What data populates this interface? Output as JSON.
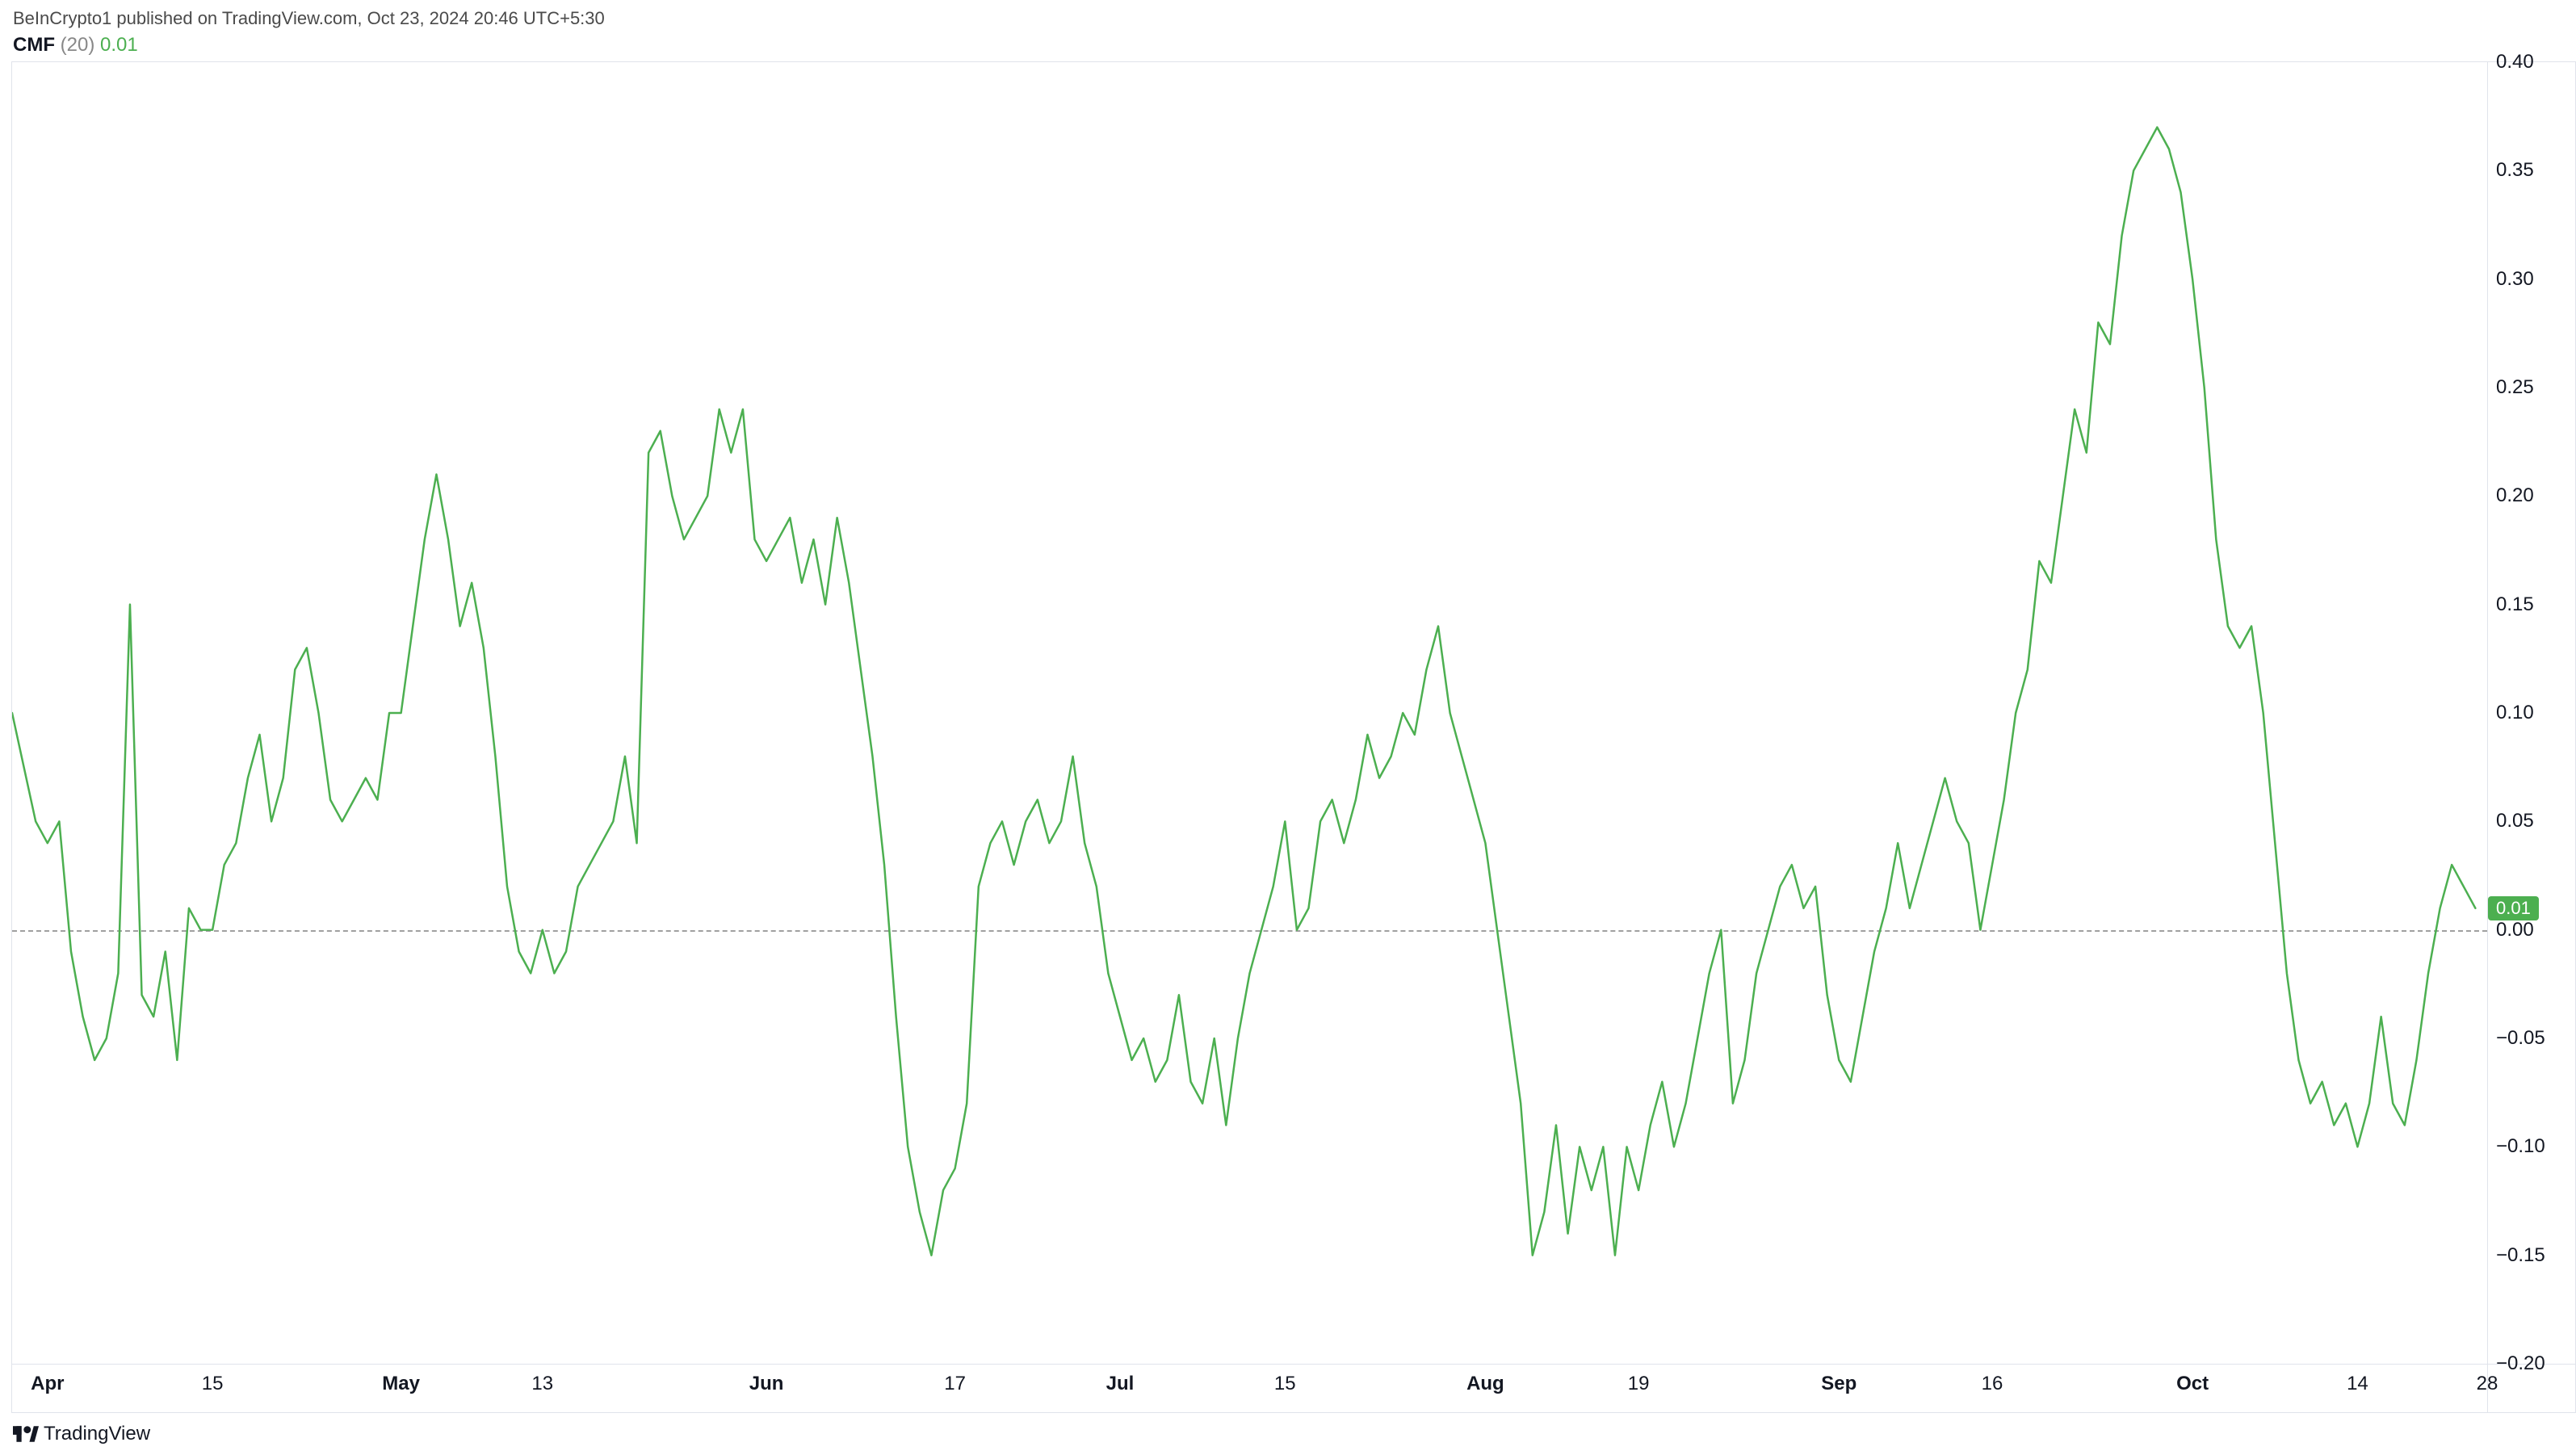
{
  "attribution": "BeInCrypto1 published on TradingView.com, Oct 23, 2024 20:46 UTC+5:30",
  "indicator": {
    "name": "CMF",
    "period": "(20)",
    "value": "0.01",
    "value_color": "#4caf50"
  },
  "footer_brand": "TradingView",
  "chart": {
    "type": "line",
    "line_color": "#4caf50",
    "line_width": 2.5,
    "background_color": "#ffffff",
    "border_color": "#e0e3eb",
    "zero_line_color": "#a0a0a0",
    "y": {
      "min": -0.2,
      "max": 0.4,
      "step": 0.05,
      "ticks": [
        {
          "v": 0.4,
          "label": "0.40"
        },
        {
          "v": 0.35,
          "label": "0.35"
        },
        {
          "v": 0.3,
          "label": "0.30"
        },
        {
          "v": 0.25,
          "label": "0.25"
        },
        {
          "v": 0.2,
          "label": "0.20"
        },
        {
          "v": 0.15,
          "label": "0.15"
        },
        {
          "v": 0.1,
          "label": "0.10"
        },
        {
          "v": 0.05,
          "label": "0.05"
        },
        {
          "v": 0.0,
          "label": "0.00"
        },
        {
          "v": -0.05,
          "label": "−0.05"
        },
        {
          "v": -0.1,
          "label": "−0.10"
        },
        {
          "v": -0.15,
          "label": "−0.15"
        },
        {
          "v": -0.2,
          "label": "−0.20"
        }
      ],
      "last_badge": {
        "v": 0.01,
        "label": "0.01",
        "bg": "#4caf50"
      }
    },
    "x": {
      "min": 0,
      "max": 210,
      "ticks": [
        {
          "v": 3,
          "label": "Apr",
          "bold": true
        },
        {
          "v": 17,
          "label": "15"
        },
        {
          "v": 33,
          "label": "May",
          "bold": true
        },
        {
          "v": 45,
          "label": "13"
        },
        {
          "v": 64,
          "label": "Jun",
          "bold": true
        },
        {
          "v": 80,
          "label": "17"
        },
        {
          "v": 94,
          "label": "Jul",
          "bold": true
        },
        {
          "v": 108,
          "label": "15"
        },
        {
          "v": 125,
          "label": "Aug",
          "bold": true
        },
        {
          "v": 138,
          "label": "19"
        },
        {
          "v": 155,
          "label": "Sep",
          "bold": true
        },
        {
          "v": 168,
          "label": "16"
        },
        {
          "v": 185,
          "label": "Oct",
          "bold": true
        },
        {
          "v": 199,
          "label": "14"
        },
        {
          "v": 210,
          "label": "28"
        }
      ]
    },
    "series": [
      {
        "x": 0,
        "y": 0.1
      },
      {
        "x": 2,
        "y": 0.05
      },
      {
        "x": 3,
        "y": 0.04
      },
      {
        "x": 4,
        "y": 0.05
      },
      {
        "x": 5,
        "y": -0.01
      },
      {
        "x": 6,
        "y": -0.04
      },
      {
        "x": 7,
        "y": -0.06
      },
      {
        "x": 8,
        "y": -0.05
      },
      {
        "x": 9,
        "y": -0.02
      },
      {
        "x": 10,
        "y": 0.15
      },
      {
        "x": 11,
        "y": -0.03
      },
      {
        "x": 12,
        "y": -0.04
      },
      {
        "x": 13,
        "y": -0.01
      },
      {
        "x": 14,
        "y": -0.06
      },
      {
        "x": 15,
        "y": 0.01
      },
      {
        "x": 16,
        "y": 0.0
      },
      {
        "x": 17,
        "y": 0.0
      },
      {
        "x": 18,
        "y": 0.03
      },
      {
        "x": 19,
        "y": 0.04
      },
      {
        "x": 20,
        "y": 0.07
      },
      {
        "x": 21,
        "y": 0.09
      },
      {
        "x": 22,
        "y": 0.05
      },
      {
        "x": 23,
        "y": 0.07
      },
      {
        "x": 24,
        "y": 0.12
      },
      {
        "x": 25,
        "y": 0.13
      },
      {
        "x": 26,
        "y": 0.1
      },
      {
        "x": 27,
        "y": 0.06
      },
      {
        "x": 28,
        "y": 0.05
      },
      {
        "x": 29,
        "y": 0.06
      },
      {
        "x": 30,
        "y": 0.07
      },
      {
        "x": 31,
        "y": 0.06
      },
      {
        "x": 32,
        "y": 0.1
      },
      {
        "x": 33,
        "y": 0.1
      },
      {
        "x": 34,
        "y": 0.14
      },
      {
        "x": 35,
        "y": 0.18
      },
      {
        "x": 36,
        "y": 0.21
      },
      {
        "x": 37,
        "y": 0.18
      },
      {
        "x": 38,
        "y": 0.14
      },
      {
        "x": 39,
        "y": 0.16
      },
      {
        "x": 40,
        "y": 0.13
      },
      {
        "x": 41,
        "y": 0.08
      },
      {
        "x": 42,
        "y": 0.02
      },
      {
        "x": 43,
        "y": -0.01
      },
      {
        "x": 44,
        "y": -0.02
      },
      {
        "x": 45,
        "y": 0.0
      },
      {
        "x": 46,
        "y": -0.02
      },
      {
        "x": 47,
        "y": -0.01
      },
      {
        "x": 48,
        "y": 0.02
      },
      {
        "x": 49,
        "y": 0.03
      },
      {
        "x": 50,
        "y": 0.04
      },
      {
        "x": 51,
        "y": 0.05
      },
      {
        "x": 52,
        "y": 0.08
      },
      {
        "x": 53,
        "y": 0.04
      },
      {
        "x": 54,
        "y": 0.22
      },
      {
        "x": 55,
        "y": 0.23
      },
      {
        "x": 56,
        "y": 0.2
      },
      {
        "x": 57,
        "y": 0.18
      },
      {
        "x": 58,
        "y": 0.19
      },
      {
        "x": 59,
        "y": 0.2
      },
      {
        "x": 60,
        "y": 0.24
      },
      {
        "x": 61,
        "y": 0.22
      },
      {
        "x": 62,
        "y": 0.24
      },
      {
        "x": 63,
        "y": 0.18
      },
      {
        "x": 64,
        "y": 0.17
      },
      {
        "x": 65,
        "y": 0.18
      },
      {
        "x": 66,
        "y": 0.19
      },
      {
        "x": 67,
        "y": 0.16
      },
      {
        "x": 68,
        "y": 0.18
      },
      {
        "x": 69,
        "y": 0.15
      },
      {
        "x": 70,
        "y": 0.19
      },
      {
        "x": 71,
        "y": 0.16
      },
      {
        "x": 72,
        "y": 0.12
      },
      {
        "x": 73,
        "y": 0.08
      },
      {
        "x": 74,
        "y": 0.03
      },
      {
        "x": 75,
        "y": -0.04
      },
      {
        "x": 76,
        "y": -0.1
      },
      {
        "x": 77,
        "y": -0.13
      },
      {
        "x": 78,
        "y": -0.15
      },
      {
        "x": 79,
        "y": -0.12
      },
      {
        "x": 80,
        "y": -0.11
      },
      {
        "x": 81,
        "y": -0.08
      },
      {
        "x": 82,
        "y": 0.02
      },
      {
        "x": 83,
        "y": 0.04
      },
      {
        "x": 84,
        "y": 0.05
      },
      {
        "x": 85,
        "y": 0.03
      },
      {
        "x": 86,
        "y": 0.05
      },
      {
        "x": 87,
        "y": 0.06
      },
      {
        "x": 88,
        "y": 0.04
      },
      {
        "x": 89,
        "y": 0.05
      },
      {
        "x": 90,
        "y": 0.08
      },
      {
        "x": 91,
        "y": 0.04
      },
      {
        "x": 92,
        "y": 0.02
      },
      {
        "x": 93,
        "y": -0.02
      },
      {
        "x": 94,
        "y": -0.04
      },
      {
        "x": 95,
        "y": -0.06
      },
      {
        "x": 96,
        "y": -0.05
      },
      {
        "x": 97,
        "y": -0.07
      },
      {
        "x": 98,
        "y": -0.06
      },
      {
        "x": 99,
        "y": -0.03
      },
      {
        "x": 100,
        "y": -0.07
      },
      {
        "x": 101,
        "y": -0.08
      },
      {
        "x": 102,
        "y": -0.05
      },
      {
        "x": 103,
        "y": -0.09
      },
      {
        "x": 104,
        "y": -0.05
      },
      {
        "x": 105,
        "y": -0.02
      },
      {
        "x": 106,
        "y": 0.0
      },
      {
        "x": 107,
        "y": 0.02
      },
      {
        "x": 108,
        "y": 0.05
      },
      {
        "x": 109,
        "y": 0.0
      },
      {
        "x": 110,
        "y": 0.01
      },
      {
        "x": 111,
        "y": 0.05
      },
      {
        "x": 112,
        "y": 0.06
      },
      {
        "x": 113,
        "y": 0.04
      },
      {
        "x": 114,
        "y": 0.06
      },
      {
        "x": 115,
        "y": 0.09
      },
      {
        "x": 116,
        "y": 0.07
      },
      {
        "x": 117,
        "y": 0.08
      },
      {
        "x": 118,
        "y": 0.1
      },
      {
        "x": 119,
        "y": 0.09
      },
      {
        "x": 120,
        "y": 0.12
      },
      {
        "x": 121,
        "y": 0.14
      },
      {
        "x": 122,
        "y": 0.1
      },
      {
        "x": 123,
        "y": 0.08
      },
      {
        "x": 124,
        "y": 0.06
      },
      {
        "x": 125,
        "y": 0.04
      },
      {
        "x": 126,
        "y": 0.0
      },
      {
        "x": 127,
        "y": -0.04
      },
      {
        "x": 128,
        "y": -0.08
      },
      {
        "x": 129,
        "y": -0.15
      },
      {
        "x": 130,
        "y": -0.13
      },
      {
        "x": 131,
        "y": -0.09
      },
      {
        "x": 132,
        "y": -0.14
      },
      {
        "x": 133,
        "y": -0.1
      },
      {
        "x": 134,
        "y": -0.12
      },
      {
        "x": 135,
        "y": -0.1
      },
      {
        "x": 136,
        "y": -0.15
      },
      {
        "x": 137,
        "y": -0.1
      },
      {
        "x": 138,
        "y": -0.12
      },
      {
        "x": 139,
        "y": -0.09
      },
      {
        "x": 140,
        "y": -0.07
      },
      {
        "x": 141,
        "y": -0.1
      },
      {
        "x": 142,
        "y": -0.08
      },
      {
        "x": 143,
        "y": -0.05
      },
      {
        "x": 144,
        "y": -0.02
      },
      {
        "x": 145,
        "y": 0.0
      },
      {
        "x": 146,
        "y": -0.08
      },
      {
        "x": 147,
        "y": -0.06
      },
      {
        "x": 148,
        "y": -0.02
      },
      {
        "x": 149,
        "y": 0.0
      },
      {
        "x": 150,
        "y": 0.02
      },
      {
        "x": 151,
        "y": 0.03
      },
      {
        "x": 152,
        "y": 0.01
      },
      {
        "x": 153,
        "y": 0.02
      },
      {
        "x": 154,
        "y": -0.03
      },
      {
        "x": 155,
        "y": -0.06
      },
      {
        "x": 156,
        "y": -0.07
      },
      {
        "x": 157,
        "y": -0.04
      },
      {
        "x": 158,
        "y": -0.01
      },
      {
        "x": 159,
        "y": 0.01
      },
      {
        "x": 160,
        "y": 0.04
      },
      {
        "x": 161,
        "y": 0.01
      },
      {
        "x": 162,
        "y": 0.03
      },
      {
        "x": 163,
        "y": 0.05
      },
      {
        "x": 164,
        "y": 0.07
      },
      {
        "x": 165,
        "y": 0.05
      },
      {
        "x": 166,
        "y": 0.04
      },
      {
        "x": 167,
        "y": 0.0
      },
      {
        "x": 168,
        "y": 0.03
      },
      {
        "x": 169,
        "y": 0.06
      },
      {
        "x": 170,
        "y": 0.1
      },
      {
        "x": 171,
        "y": 0.12
      },
      {
        "x": 172,
        "y": 0.17
      },
      {
        "x": 173,
        "y": 0.16
      },
      {
        "x": 174,
        "y": 0.2
      },
      {
        "x": 175,
        "y": 0.24
      },
      {
        "x": 176,
        "y": 0.22
      },
      {
        "x": 177,
        "y": 0.28
      },
      {
        "x": 178,
        "y": 0.27
      },
      {
        "x": 179,
        "y": 0.32
      },
      {
        "x": 180,
        "y": 0.35
      },
      {
        "x": 181,
        "y": 0.36
      },
      {
        "x": 182,
        "y": 0.37
      },
      {
        "x": 183,
        "y": 0.36
      },
      {
        "x": 184,
        "y": 0.34
      },
      {
        "x": 185,
        "y": 0.3
      },
      {
        "x": 186,
        "y": 0.25
      },
      {
        "x": 187,
        "y": 0.18
      },
      {
        "x": 188,
        "y": 0.14
      },
      {
        "x": 189,
        "y": 0.13
      },
      {
        "x": 190,
        "y": 0.14
      },
      {
        "x": 191,
        "y": 0.1
      },
      {
        "x": 192,
        "y": 0.04
      },
      {
        "x": 193,
        "y": -0.02
      },
      {
        "x": 194,
        "y": -0.06
      },
      {
        "x": 195,
        "y": -0.08
      },
      {
        "x": 196,
        "y": -0.07
      },
      {
        "x": 197,
        "y": -0.09
      },
      {
        "x": 198,
        "y": -0.08
      },
      {
        "x": 199,
        "y": -0.1
      },
      {
        "x": 200,
        "y": -0.08
      },
      {
        "x": 201,
        "y": -0.04
      },
      {
        "x": 202,
        "y": -0.08
      },
      {
        "x": 203,
        "y": -0.09
      },
      {
        "x": 204,
        "y": -0.06
      },
      {
        "x": 205,
        "y": -0.02
      },
      {
        "x": 206,
        "y": 0.01
      },
      {
        "x": 207,
        "y": 0.03
      },
      {
        "x": 208,
        "y": 0.02
      },
      {
        "x": 209,
        "y": 0.01
      }
    ]
  }
}
